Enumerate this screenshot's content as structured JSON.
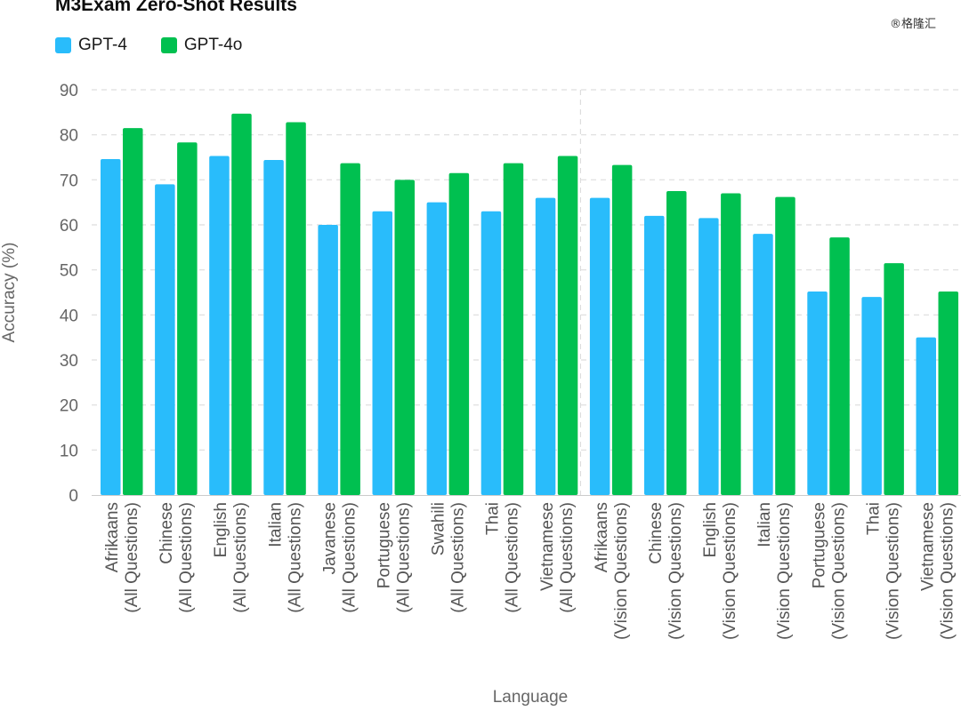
{
  "watermark": "®格隆汇",
  "colors": {
    "gpt4": "#29bcfb",
    "gpt4o": "#00c050",
    "grid": "#dddddd"
  },
  "chart_data": {
    "type": "bar",
    "title": "M3Exam Zero-Shot Results",
    "xlabel": "Language",
    "ylabel": "Accuracy (%)",
    "ylim": [
      0,
      90
    ],
    "yticks": [
      0,
      10,
      20,
      30,
      40,
      50,
      60,
      70,
      80,
      90
    ],
    "grid": true,
    "legend_position": "top-left",
    "categories": [
      [
        "Afrikaans",
        "(All Questions)"
      ],
      [
        "Chinese",
        "(All Questions)"
      ],
      [
        "English",
        "(All Questions)"
      ],
      [
        "Italian",
        "(All Questions)"
      ],
      [
        "Javanese",
        "(All Questions)"
      ],
      [
        "Portuguese",
        "(All Questions)"
      ],
      [
        "Swahili",
        "(All Questions)"
      ],
      [
        "Thai",
        "(All Questions)"
      ],
      [
        "Vietnamese",
        "(All Questions)"
      ],
      [
        "Afrikaans",
        "(Vision Questions)"
      ],
      [
        "Chinese",
        "(Vision Questions)"
      ],
      [
        "English",
        "(Vision Questions)"
      ],
      [
        "Italian",
        "(Vision Questions)"
      ],
      [
        "Portuguese",
        "(Vision Questions)"
      ],
      [
        "Thai",
        "(Vision Questions)"
      ],
      [
        "Vietnamese",
        "(Vision Questions)"
      ]
    ],
    "series": [
      {
        "name": "GPT-4",
        "color": "#29bcfb",
        "values": [
          74.6,
          69.0,
          75.3,
          74.4,
          60.0,
          63.0,
          65.0,
          63.0,
          66.0,
          66.0,
          62.0,
          61.5,
          58.0,
          45.2,
          44.0,
          35.0
        ]
      },
      {
        "name": "GPT-4o",
        "color": "#00c050",
        "values": [
          81.5,
          78.3,
          84.7,
          82.8,
          73.7,
          70.0,
          71.5,
          73.7,
          75.3,
          73.3,
          67.5,
          67.0,
          66.2,
          57.2,
          51.5,
          45.2
        ]
      }
    ]
  }
}
